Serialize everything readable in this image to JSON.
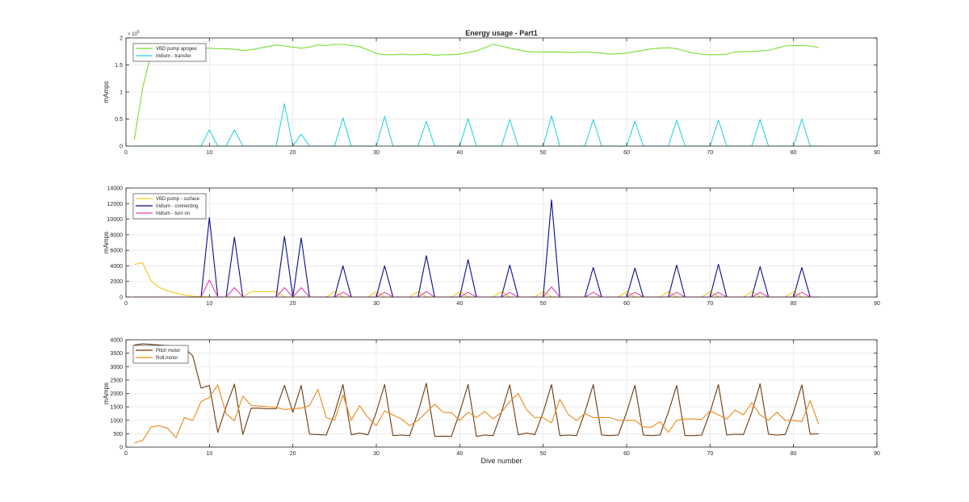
{
  "figure": {
    "title": "Energy usage - Part1",
    "xlabel": "Dive number",
    "x_ticks": [
      "0",
      "10",
      "20",
      "30",
      "40",
      "50",
      "60",
      "70",
      "80",
      "90"
    ],
    "axis_color": "#262626",
    "grid_color": "#e6e6e6"
  },
  "chart_data": [
    {
      "type": "line",
      "title": "Energy usage - Part1",
      "xlabel": "",
      "ylabel": "mAmps",
      "xlim": [
        0,
        90
      ],
      "ylim": [
        0,
        200000
      ],
      "grid": true,
      "legend": "top-left",
      "exponent_label": "× 10",
      "exponent_power": "5",
      "y_ticks": [
        {
          "v": 0,
          "t": "0"
        },
        {
          "v": 50000,
          "t": "0.5"
        },
        {
          "v": 100000,
          "t": "1"
        },
        {
          "v": 150000,
          "t": "1.5"
        },
        {
          "v": 200000,
          "t": "2"
        }
      ],
      "x": [
        1,
        2,
        3,
        4,
        5,
        6,
        7,
        8,
        9,
        10,
        11,
        12,
        13,
        14,
        15,
        16,
        17,
        18,
        19,
        20,
        21,
        22,
        23,
        24,
        25,
        26,
        27,
        28,
        29,
        30,
        31,
        32,
        33,
        34,
        35,
        36,
        37,
        38,
        39,
        40,
        41,
        42,
        43,
        44,
        45,
        46,
        47,
        48,
        49,
        50,
        51,
        52,
        53,
        54,
        55,
        56,
        57,
        58,
        59,
        60,
        61,
        62,
        63,
        64,
        65,
        66,
        67,
        68,
        69,
        70,
        71,
        72,
        73,
        74,
        75,
        76,
        77,
        78,
        79,
        80,
        81,
        82,
        83
      ],
      "series": [
        {
          "name": "VBD pump apogee",
          "color": "#77dd33",
          "values": [
            12000,
            108000,
            170000,
            180000,
            182000,
            182000,
            182000,
            182000,
            181000,
            181000,
            180000,
            180000,
            179000,
            177000,
            178000,
            181000,
            184000,
            187000,
            185000,
            183000,
            181000,
            183000,
            187000,
            186000,
            188000,
            188000,
            186000,
            184000,
            178000,
            171000,
            169000,
            169000,
            170000,
            169000,
            169000,
            170000,
            168000,
            169000,
            169000,
            170000,
            173000,
            176000,
            182000,
            188000,
            185000,
            181000,
            178000,
            175000,
            174000,
            174000,
            174000,
            174000,
            173000,
            173000,
            174000,
            173000,
            172000,
            170000,
            171000,
            172000,
            175000,
            177000,
            180000,
            181000,
            182000,
            180000,
            176000,
            172000,
            170000,
            169000,
            169000,
            170000,
            174000,
            175000,
            175000,
            176000,
            177000,
            181000,
            185000,
            186000,
            186000,
            185000,
            182000
          ]
        },
        {
          "name": "Iridium - transfer",
          "color": "#2ad4e2",
          "values": [
            0,
            0,
            0,
            0,
            0,
            0,
            0,
            0,
            0,
            30000,
            0,
            0,
            30000,
            0,
            0,
            0,
            0,
            0,
            78000,
            0,
            22000,
            0,
            0,
            0,
            0,
            52000,
            0,
            0,
            0,
            0,
            55000,
            0,
            0,
            0,
            0,
            46000,
            0,
            0,
            0,
            0,
            51000,
            0,
            0,
            0,
            0,
            49000,
            0,
            0,
            0,
            0,
            56000,
            0,
            0,
            0,
            0,
            49000,
            0,
            0,
            0,
            0,
            46000,
            0,
            0,
            0,
            0,
            48000,
            0,
            0,
            0,
            0,
            48000,
            0,
            0,
            0,
            0,
            49000,
            0,
            0,
            0,
            0,
            50000,
            0,
            0
          ]
        }
      ]
    },
    {
      "type": "line",
      "title": "",
      "xlabel": "",
      "ylabel": "mAmps",
      "xlim": [
        0,
        90
      ],
      "ylim": [
        0,
        14000
      ],
      "grid": true,
      "legend": "top-left",
      "y_ticks": [
        {
          "v": 0,
          "t": "0"
        },
        {
          "v": 2000,
          "t": "2000"
        },
        {
          "v": 4000,
          "t": "4000"
        },
        {
          "v": 6000,
          "t": "6000"
        },
        {
          "v": 8000,
          "t": "8000"
        },
        {
          "v": 10000,
          "t": "10000"
        },
        {
          "v": 12000,
          "t": "12000"
        },
        {
          "v": 14000,
          "t": "14000"
        }
      ],
      "x": [
        1,
        2,
        3,
        4,
        5,
        6,
        7,
        8,
        9,
        10,
        11,
        12,
        13,
        14,
        15,
        16,
        17,
        18,
        19,
        20,
        21,
        22,
        23,
        24,
        25,
        26,
        27,
        28,
        29,
        30,
        31,
        32,
        33,
        34,
        35,
        36,
        37,
        38,
        39,
        40,
        41,
        42,
        43,
        44,
        45,
        46,
        47,
        48,
        49,
        50,
        51,
        52,
        53,
        54,
        55,
        56,
        57,
        58,
        59,
        60,
        61,
        62,
        63,
        64,
        65,
        66,
        67,
        68,
        69,
        70,
        71,
        72,
        73,
        74,
        75,
        76,
        77,
        78,
        79,
        80,
        81,
        82,
        83
      ],
      "series": [
        {
          "name": "VBD pump - surface",
          "color": "#f2c919",
          "values": [
            4200,
            4400,
            2100,
            1200,
            800,
            500,
            250,
            100,
            50,
            0,
            0,
            0,
            0,
            0,
            700,
            700,
            700,
            700,
            0,
            0,
            0,
            0,
            0,
            0,
            700,
            0,
            0,
            0,
            0,
            700,
            0,
            0,
            0,
            0,
            700,
            0,
            0,
            0,
            0,
            700,
            0,
            0,
            0,
            0,
            700,
            0,
            0,
            0,
            0,
            700,
            0,
            0,
            0,
            0,
            0,
            0,
            0,
            0,
            0,
            700,
            0,
            0,
            0,
            0,
            700,
            0,
            0,
            0,
            0,
            700,
            0,
            0,
            0,
            0,
            700,
            0,
            0,
            0,
            0,
            700,
            0,
            0,
            0
          ]
        },
        {
          "name": "Iridium - connecting",
          "color": "#0a0a8c",
          "values": [
            0,
            0,
            0,
            0,
            0,
            0,
            0,
            0,
            0,
            10200,
            0,
            0,
            7700,
            0,
            0,
            0,
            0,
            0,
            7800,
            0,
            7600,
            0,
            0,
            0,
            0,
            4000,
            0,
            0,
            0,
            0,
            4000,
            0,
            0,
            0,
            0,
            5300,
            0,
            0,
            0,
            0,
            4800,
            0,
            0,
            0,
            0,
            4100,
            0,
            0,
            0,
            0,
            12500,
            0,
            0,
            0,
            0,
            3800,
            0,
            0,
            0,
            0,
            3700,
            0,
            0,
            0,
            0,
            4100,
            0,
            0,
            0,
            0,
            4200,
            0,
            0,
            0,
            0,
            3900,
            0,
            0,
            0,
            0,
            3800,
            0,
            0
          ]
        },
        {
          "name": "Iridium - turn on",
          "color": "#e040b0",
          "values": [
            0,
            0,
            0,
            0,
            0,
            0,
            0,
            0,
            0,
            2200,
            0,
            0,
            1200,
            0,
            0,
            0,
            0,
            0,
            1200,
            0,
            1200,
            0,
            0,
            0,
            0,
            600,
            0,
            0,
            0,
            0,
            600,
            0,
            0,
            0,
            0,
            700,
            0,
            0,
            0,
            0,
            600,
            0,
            0,
            0,
            0,
            600,
            0,
            0,
            0,
            0,
            1300,
            0,
            0,
            0,
            0,
            600,
            0,
            0,
            0,
            0,
            600,
            0,
            0,
            0,
            0,
            600,
            0,
            0,
            0,
            0,
            600,
            0,
            0,
            0,
            0,
            600,
            0,
            0,
            0,
            0,
            600,
            0,
            0
          ]
        }
      ]
    },
    {
      "type": "line",
      "title": "",
      "xlabel": "Dive number",
      "ylabel": "mAmps",
      "xlim": [
        0,
        90
      ],
      "ylim": [
        0,
        4000
      ],
      "grid": true,
      "legend": "top-left",
      "y_ticks": [
        {
          "v": 0,
          "t": "0"
        },
        {
          "v": 500,
          "t": "500"
        },
        {
          "v": 1000,
          "t": "1000"
        },
        {
          "v": 1500,
          "t": "1500"
        },
        {
          "v": 2000,
          "t": "2000"
        },
        {
          "v": 2500,
          "t": "2500"
        },
        {
          "v": 3000,
          "t": "3000"
        },
        {
          "v": 3500,
          "t": "3500"
        },
        {
          "v": 4000,
          "t": "4000"
        }
      ],
      "x": [
        1,
        2,
        3,
        4,
        5,
        6,
        7,
        8,
        9,
        10,
        11,
        12,
        13,
        14,
        15,
        16,
        17,
        18,
        19,
        20,
        21,
        22,
        23,
        24,
        25,
        26,
        27,
        28,
        29,
        30,
        31,
        32,
        33,
        34,
        35,
        36,
        37,
        38,
        39,
        40,
        41,
        42,
        43,
        44,
        45,
        46,
        47,
        48,
        49,
        50,
        51,
        52,
        53,
        54,
        55,
        56,
        57,
        58,
        59,
        60,
        61,
        62,
        63,
        64,
        65,
        66,
        67,
        68,
        69,
        70,
        71,
        72,
        73,
        74,
        75,
        76,
        77,
        78,
        79,
        80,
        81,
        82,
        83
      ],
      "series": [
        {
          "name": "Pitch motor",
          "color": "#6b3a10",
          "values": [
            3800,
            3850,
            3830,
            3800,
            3780,
            3750,
            3700,
            3400,
            2200,
            2300,
            550,
            1500,
            2350,
            470,
            1450,
            1450,
            1430,
            1430,
            2300,
            1300,
            2300,
            480,
            470,
            450,
            1250,
            2330,
            460,
            520,
            460,
            1300,
            2330,
            430,
            450,
            430,
            1300,
            2380,
            400,
            410,
            400,
            1300,
            2330,
            400,
            450,
            430,
            1300,
            2320,
            460,
            520,
            470,
            1300,
            2330,
            430,
            450,
            430,
            1300,
            2330,
            450,
            430,
            450,
            1300,
            2300,
            450,
            430,
            450,
            1300,
            2300,
            430,
            430,
            450,
            1300,
            2330,
            450,
            480,
            470,
            1300,
            2360,
            480,
            450,
            470,
            1300,
            2320,
            480,
            500
          ]
        },
        {
          "name": "Roll motor",
          "color": "#e88a1a",
          "values": [
            150,
            250,
            750,
            800,
            700,
            350,
            1100,
            1000,
            1700,
            1850,
            2320,
            1250,
            980,
            1900,
            1550,
            1530,
            1500,
            1480,
            1400,
            1430,
            1450,
            1550,
            2150,
            1100,
            1000,
            1950,
            1000,
            1550,
            1100,
            800,
            1350,
            1200,
            1050,
            800,
            1000,
            1300,
            1600,
            1300,
            1280,
            1000,
            1300,
            1100,
            1330,
            1050,
            1300,
            1700,
            2000,
            1400,
            1100,
            1100,
            900,
            1780,
            1220,
            1000,
            1250,
            1100,
            1100,
            1100,
            1000,
            1000,
            1000,
            750,
            750,
            950,
            550,
            1000,
            1050,
            1050,
            1030,
            1350,
            1200,
            1050,
            1380,
            1200,
            1650,
            1200,
            1000,
            1300,
            1000,
            1000,
            950,
            1730,
            870
          ]
        }
      ]
    }
  ]
}
